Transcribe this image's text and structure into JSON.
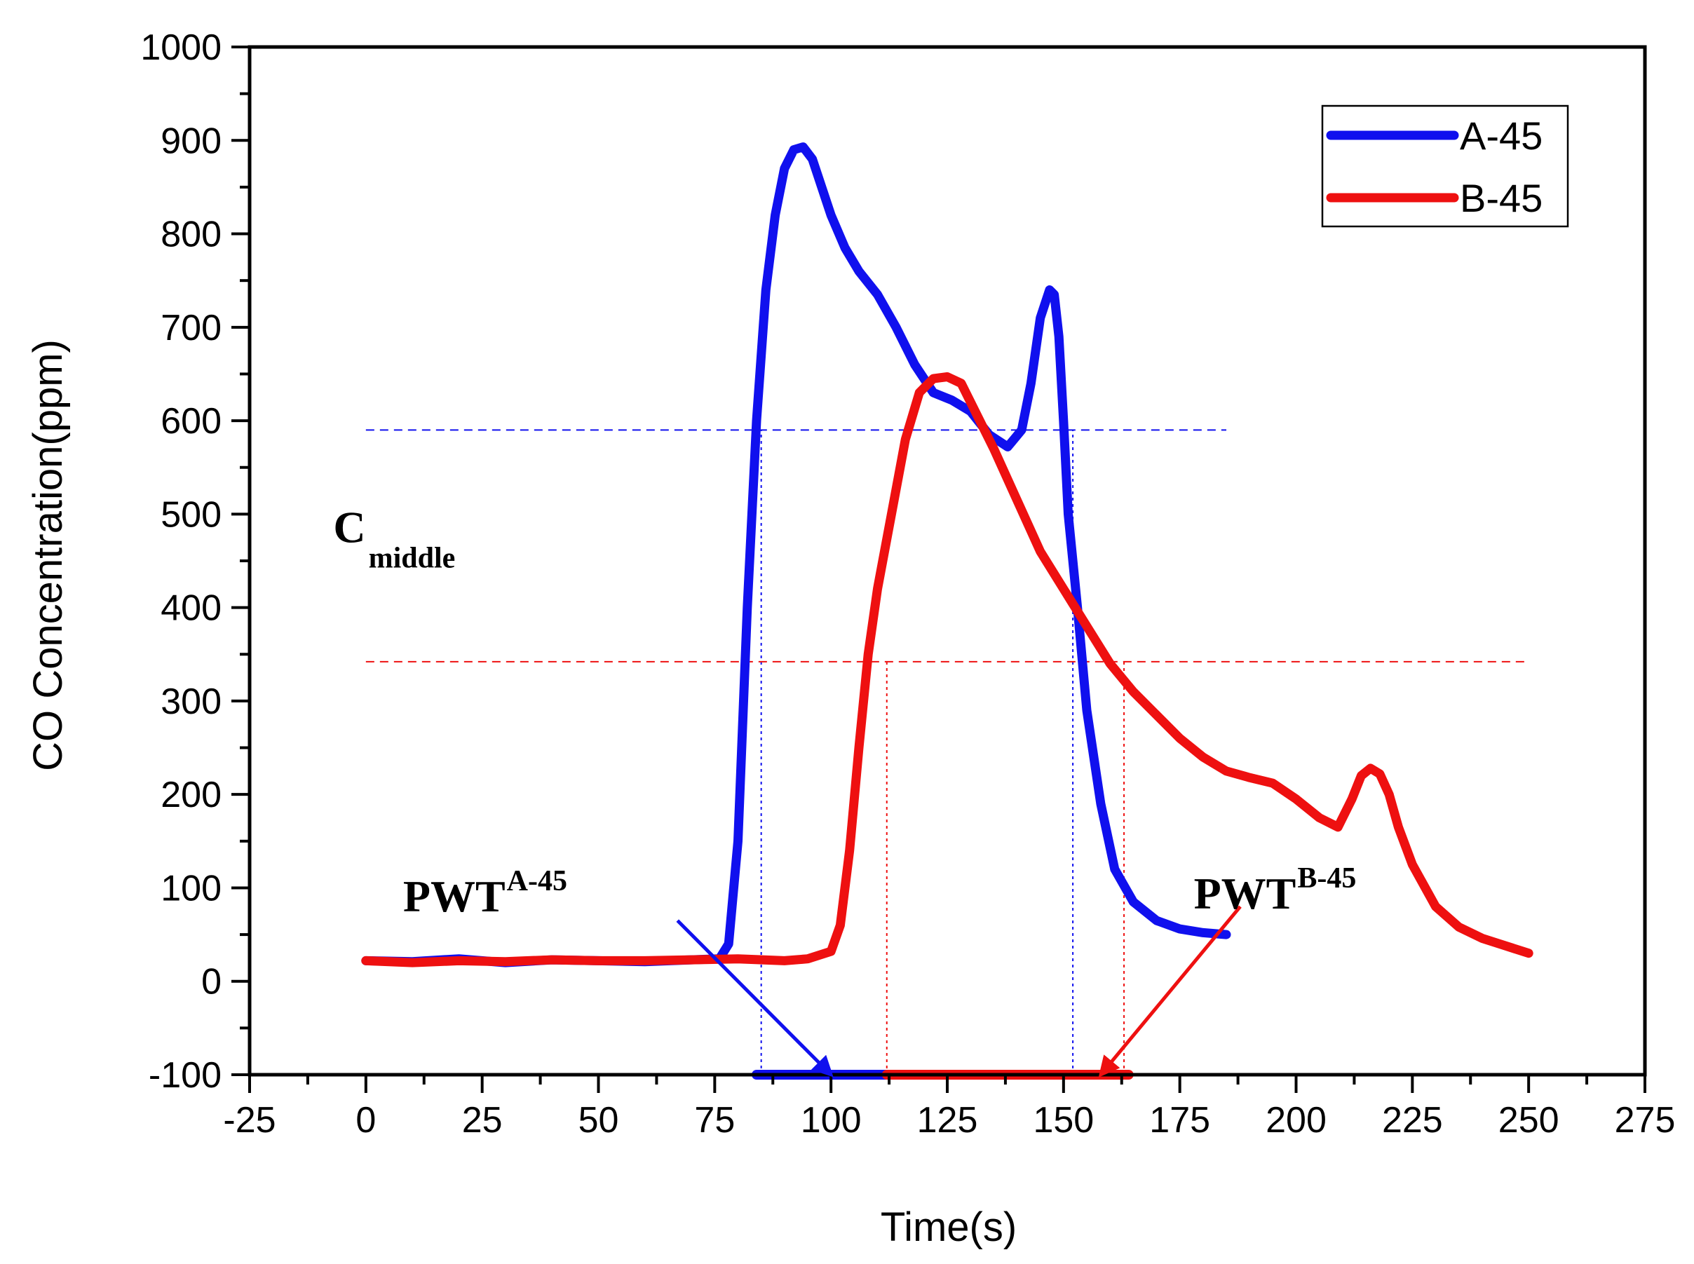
{
  "chart_data": {
    "type": "line",
    "title": "",
    "xlabel": "Time(s)",
    "ylabel": "CO Concentration(ppm)",
    "xlim": [
      -25,
      275
    ],
    "ylim": [
      -100,
      1000
    ],
    "x_ticks": [
      -25,
      0,
      25,
      50,
      75,
      100,
      125,
      150,
      175,
      200,
      225,
      250,
      275
    ],
    "y_ticks": [
      -100,
      0,
      100,
      200,
      300,
      400,
      500,
      600,
      700,
      800,
      900,
      1000
    ],
    "x_tick_labels": [
      "-25",
      "0",
      "25",
      "50",
      "75",
      "100",
      "125",
      "150",
      "175",
      "200",
      "225",
      "250",
      "275"
    ],
    "y_tick_labels": [
      "-100",
      "0",
      "100",
      "200",
      "300",
      "400",
      "500",
      "600",
      "700",
      "800",
      "900",
      "1000"
    ],
    "legend": {
      "position": "top-right",
      "entries": [
        "A-45",
        "B-45"
      ]
    },
    "series": [
      {
        "name": "A-45",
        "color": "#1010ee",
        "x": [
          0,
          10,
          20,
          30,
          40,
          50,
          60,
          70,
          76,
          78,
          80,
          82,
          84,
          86,
          88,
          90,
          92,
          94,
          96,
          98,
          100,
          103,
          106,
          110,
          114,
          118,
          122,
          126,
          130,
          134,
          138,
          141,
          143,
          145,
          147,
          148,
          149,
          150,
          151,
          153,
          155,
          158,
          161,
          165,
          170,
          175,
          180,
          185
        ],
        "values": [
          22,
          21,
          24,
          20,
          23,
          22,
          21,
          23,
          24,
          40,
          150,
          400,
          600,
          740,
          820,
          870,
          890,
          893,
          880,
          850,
          820,
          785,
          760,
          735,
          700,
          660,
          630,
          622,
          610,
          585,
          572,
          590,
          640,
          710,
          740,
          735,
          690,
          600,
          500,
          400,
          290,
          190,
          120,
          85,
          65,
          56,
          52,
          50
        ]
      },
      {
        "name": "B-45",
        "color": "#ee1010",
        "x": [
          0,
          10,
          20,
          30,
          40,
          50,
          60,
          70,
          80,
          90,
          95,
          100,
          102,
          104,
          106,
          108,
          110,
          113,
          116,
          119,
          122,
          125,
          128,
          131,
          135,
          140,
          145,
          150,
          155,
          160,
          165,
          170,
          175,
          180,
          185,
          190,
          195,
          200,
          205,
          209,
          212,
          214,
          216,
          218,
          220,
          222,
          225,
          230,
          235,
          240,
          245,
          250
        ],
        "values": [
          22,
          20,
          22,
          21,
          23,
          22,
          22,
          23,
          24,
          22,
          24,
          32,
          60,
          140,
          250,
          350,
          420,
          500,
          580,
          630,
          645,
          647,
          640,
          610,
          570,
          515,
          460,
          420,
          380,
          340,
          310,
          285,
          260,
          240,
          225,
          218,
          212,
          195,
          175,
          165,
          195,
          220,
          228,
          222,
          200,
          165,
          125,
          80,
          58,
          46,
          38,
          30
        ]
      }
    ],
    "reference_lines": [
      {
        "series": "A-45",
        "orientation": "horizontal",
        "y": 590,
        "x_range": [
          0,
          185
        ]
      },
      {
        "series": "A-45",
        "orientation": "vertical",
        "x": 85,
        "y_range": [
          -100,
          590
        ]
      },
      {
        "series": "A-45",
        "orientation": "vertical",
        "x": 152,
        "y_range": [
          -100,
          590
        ]
      },
      {
        "series": "B-45",
        "orientation": "horizontal",
        "y": 342,
        "x_range": [
          0,
          250
        ]
      },
      {
        "series": "B-45",
        "orientation": "vertical",
        "x": 112,
        "y_range": [
          -100,
          342
        ]
      },
      {
        "series": "B-45",
        "orientation": "vertical",
        "x": 163,
        "y_range": [
          -100,
          342
        ]
      }
    ],
    "pulse_width_bars": [
      {
        "name": "PWT A-45",
        "series": "A-45",
        "x_start": 84,
        "x_end": 153,
        "y": -100
      },
      {
        "name": "PWT B-45",
        "series": "B-45",
        "x_start": 112,
        "x_end": 164,
        "y": -100
      }
    ],
    "annotations": [
      {
        "id": "cmiddle",
        "text": "C",
        "sub": "middle",
        "x": -7,
        "y": 470
      },
      {
        "id": "pwt_a",
        "text": "PWT",
        "sup": "A-45",
        "x": 8,
        "y": 75,
        "arrow_from": [
          67,
          65
        ],
        "arrow_to": [
          100,
          -100
        ],
        "color": "#1010ee"
      },
      {
        "id": "pwt_b",
        "text": "PWT",
        "sup": "B-45",
        "x": 178,
        "y": 78,
        "arrow_from": [
          188,
          80
        ],
        "arrow_to": [
          158,
          -100
        ],
        "color": "#ee1010"
      }
    ]
  }
}
